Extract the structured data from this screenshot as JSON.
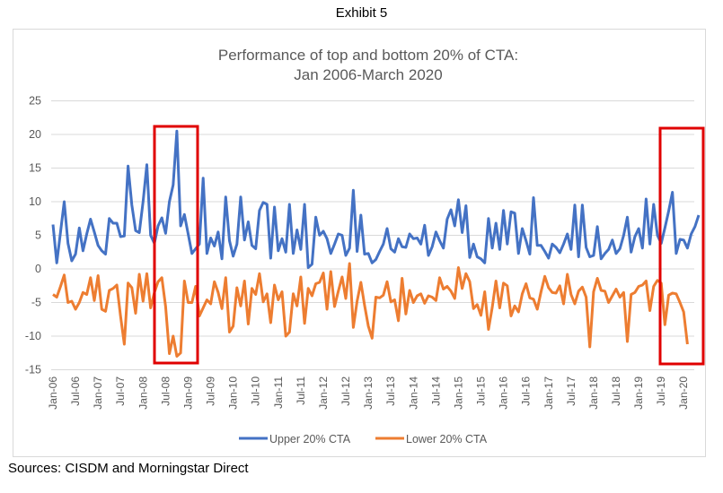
{
  "exhibit_label": "Exhibit 5",
  "sources": "Sources: CISDM and Morningstar Direct",
  "colors": {
    "upper": "#4472C4",
    "lower": "#ED7D31",
    "highlight": "#E00000",
    "grid": "#D9D9D9"
  },
  "chart_data": {
    "type": "line",
    "title": "Performance of top and bottom 20% of CTA:",
    "subtitle": "Jan 2006-March 2020",
    "xlabel": "",
    "ylabel": "",
    "ylim": [
      -15,
      25
    ],
    "yticks": [
      "25",
      "20",
      "15",
      "10",
      "5",
      "0",
      "-5",
      "-10",
      "-15"
    ],
    "ytick_values": [
      25,
      20,
      15,
      10,
      5,
      0,
      -5,
      -10,
      -15
    ],
    "grid": true,
    "legend_position": "bottom",
    "x_start": "Jan 2006",
    "x_end": "Mar 2020",
    "xtick_labels": [
      "Jan-06",
      "Jul-06",
      "Jan-07",
      "Jul-07",
      "Jan-08",
      "Jul-08",
      "Jan-09",
      "Jul-09",
      "Jan-10",
      "Jul-10",
      "Jan-11",
      "Jul-11",
      "Jan-12",
      "Jul-12",
      "Jan-13",
      "Jul-13",
      "Jan-14",
      "Jul-14",
      "Jan-15",
      "Jul-15",
      "Jan-16",
      "Jul-16",
      "Jan-17",
      "Jul-17",
      "Jan-18",
      "Jul-18",
      "Jan-19",
      "Jul-19",
      "Jan-20"
    ],
    "series": [
      {
        "name": "Upper 20% CTA",
        "values": [
          6.6,
          0.9,
          5.5,
          10,
          3.8,
          1.2,
          2.2,
          6.1,
          2.7,
          5.2,
          7.4,
          5.5,
          3.5,
          2.7,
          2.2,
          7.5,
          6.8,
          6.8,
          4.8,
          4.9,
          15.3,
          9.5,
          5.7,
          5.4,
          10,
          15.5,
          5,
          3.8,
          6.4,
          7.6,
          5.3,
          10,
          12.5,
          20.5,
          6.4,
          8.1,
          5.2,
          2.3,
          3,
          3.7,
          13.5,
          2.3,
          4.6,
          3.4,
          5.5,
          1.5,
          10.7,
          4.2,
          1.9,
          3.7,
          10.7,
          4.3,
          7,
          3.5,
          3,
          8.7,
          9.9,
          9.6,
          1.6,
          9.2,
          2.7,
          4.5,
          2.5,
          9.6,
          2.3,
          5.8,
          2.9,
          9.6,
          0.2,
          0.7,
          7.7,
          5,
          5.6,
          4.5,
          2.3,
          3.7,
          5.2,
          5,
          2,
          3.1,
          11.7,
          2.6,
          8,
          2.2,
          2.3,
          0.9,
          1.4,
          2.6,
          3.7,
          6,
          3,
          2.5,
          4.5,
          3.3,
          3.2,
          5.2,
          4.5,
          4.6,
          3.7,
          6.5,
          2,
          3.3,
          5.5,
          4.2,
          3.1,
          7.4,
          8.8,
          6.4,
          10.3,
          5.4,
          9.4,
          1.7,
          3.7,
          1.8,
          1.5,
          0.9,
          7.5,
          3.1,
          6.8,
          2.9,
          8.7,
          3.7,
          8.5,
          8.3,
          2.3,
          6,
          4.2,
          2.2,
          10.6,
          3.5,
          3.5,
          2.6,
          1.6,
          3.7,
          3.2,
          2.4,
          3.7,
          5.2,
          2.9,
          9.5,
          1.8,
          9.5,
          3.2,
          1.8,
          2,
          6.3,
          1.5,
          2.3,
          2.9,
          4.3,
          2.3,
          3,
          5,
          7.7,
          2.5,
          4.8,
          6,
          3.1,
          10.4,
          3.7,
          9.6,
          5,
          3.8,
          6.1,
          8.6,
          11.4,
          2.3,
          4.4,
          4.3,
          3.1,
          5.2,
          6.3,
          8
        ],
        "color": "#4472C4"
      },
      {
        "name": "Lower 20% CTA",
        "values": [
          -3.8,
          -4.2,
          -2.6,
          -0.9,
          -5,
          -4.8,
          -6,
          -5,
          -3.5,
          -3.8,
          -1.3,
          -4.7,
          -1,
          -6,
          -6.3,
          -3.2,
          -2.9,
          -2.4,
          -7,
          -11.2,
          -2.1,
          -2.8,
          -6.6,
          -0.8,
          -4.8,
          -0.7,
          -5.8,
          -3.5,
          -1.9,
          -1.3,
          -5.6,
          -12.6,
          -10,
          -13,
          -12.5,
          -1.8,
          -5,
          -5,
          -2.6,
          -7,
          -5.8,
          -4.6,
          -5.2,
          -1.9,
          -3.5,
          -5.9,
          -1.3,
          -9.4,
          -8.5,
          -2.8,
          -5.5,
          -1.8,
          -8.2,
          -2.9,
          -3.8,
          -0.7,
          -4.9,
          -3.7,
          -8,
          -2.4,
          -4.6,
          -3.4,
          -10,
          -9.4,
          -3.7,
          -5.5,
          -1.2,
          -8.1,
          -2.9,
          -4,
          -2.2,
          -2,
          -0.6,
          -6,
          -0.4,
          -5.6,
          -3.3,
          -1.2,
          -4.4,
          0.8,
          -8.7,
          -4.8,
          -2,
          -5.4,
          -8.5,
          -10.3,
          -4.2,
          -4.3,
          -3.9,
          -1.9,
          -4.9,
          -4.6,
          -7.7,
          -1.4,
          -6.7,
          -3.2,
          -5,
          -4,
          -3.7,
          -5.1,
          -4,
          -4.2,
          -4.7,
          -1.3,
          -3,
          -2.6,
          -3.3,
          -4.4,
          0.2,
          -2.9,
          -0.7,
          -1.9,
          -5.9,
          -5.3,
          -6.9,
          -3.4,
          -9,
          -5.7,
          -1.8,
          -5.8,
          -2.1,
          -2.5,
          -7,
          -5.5,
          -6.4,
          -3.7,
          -2.2,
          -4.3,
          -4.5,
          -6,
          -3.4,
          -1.1,
          -2.8,
          -3.5,
          -3.6,
          -2.5,
          -5.2,
          -0.8,
          -3.8,
          -5.2,
          -3.3,
          -2.7,
          -4.2,
          -11.6,
          -3.4,
          -1.4,
          -3.2,
          -3.3,
          -5,
          -4,
          -3,
          -4.2,
          -3.5,
          -10.8,
          -3.8,
          -3.5,
          -2.6,
          -2.4,
          -1.8,
          -6.2,
          -2.6,
          -1.7,
          -2.1,
          -8.3,
          -3.9,
          -3.6,
          -3.7,
          -5,
          -6.4,
          -11.2
        ],
        "color": "#ED7D31"
      }
    ],
    "annotations": [
      {
        "type": "highlight-box",
        "from": "Mar-08",
        "to": "Mar-09",
        "color": "#E00000"
      },
      {
        "type": "highlight-box",
        "from": "Jul-19",
        "to": "Mar-20",
        "color": "#E00000"
      }
    ]
  }
}
